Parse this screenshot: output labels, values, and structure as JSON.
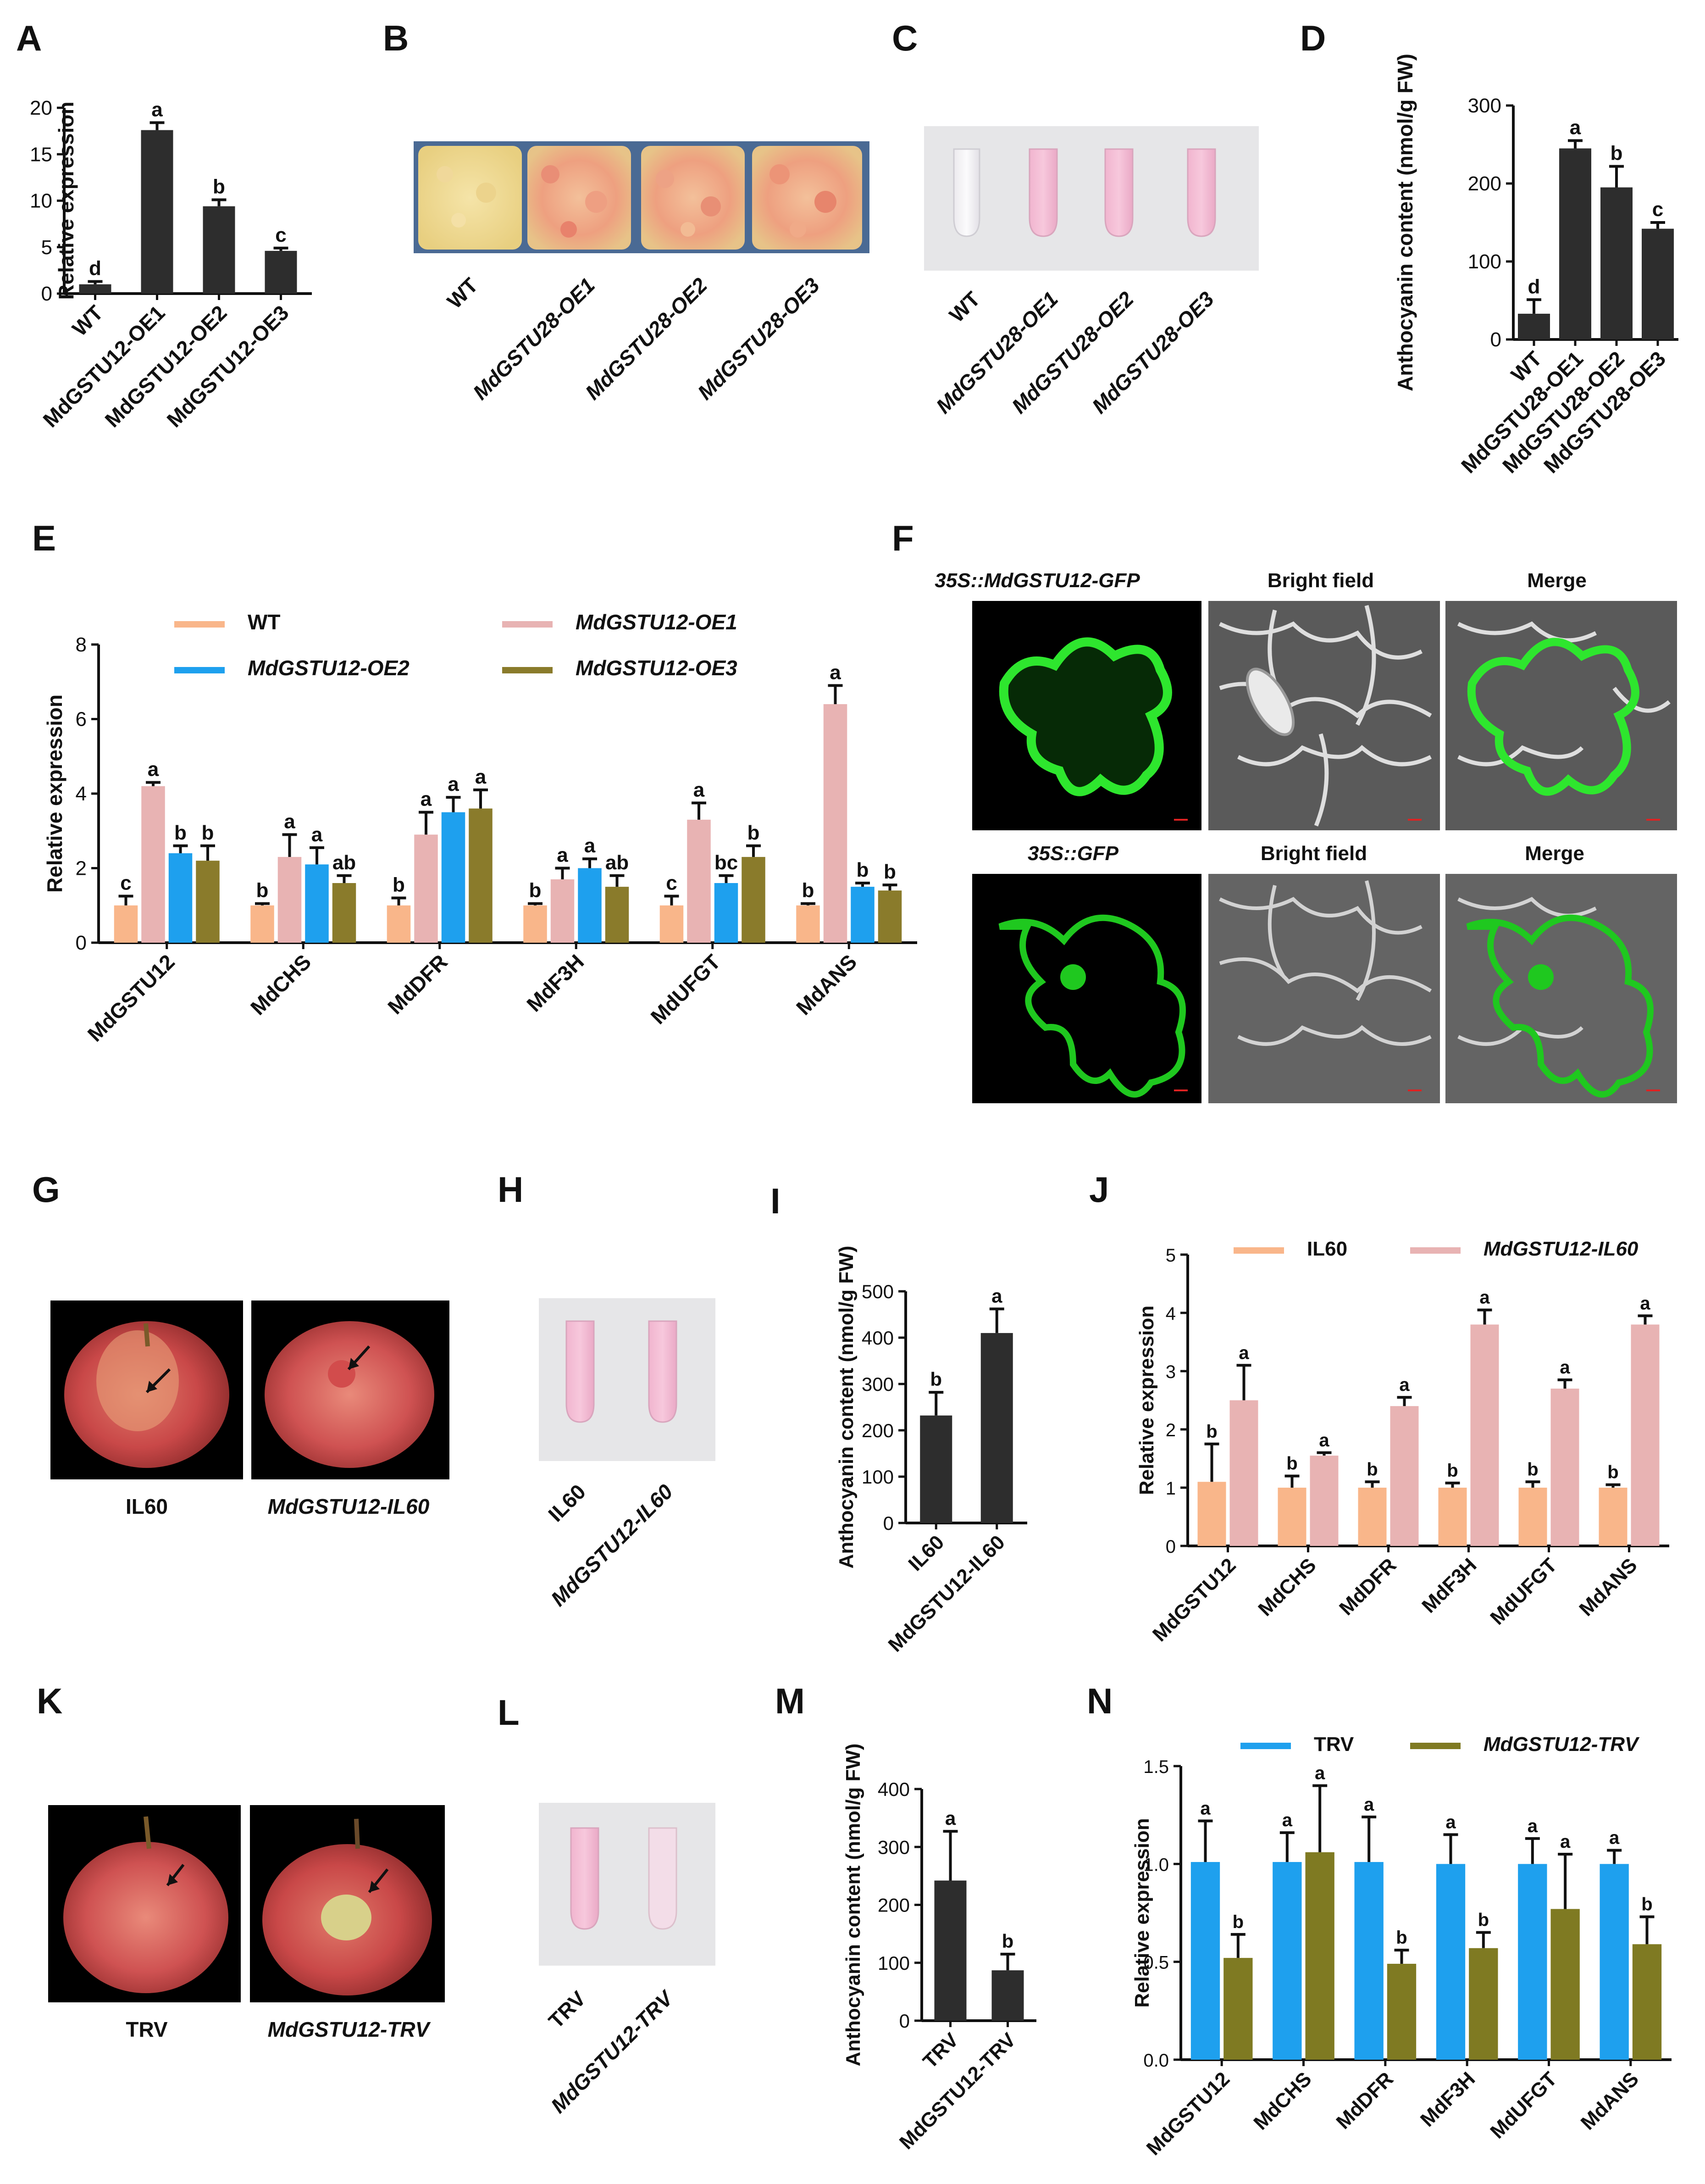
{
  "panel_labels": [
    "A",
    "B",
    "C",
    "D",
    "E",
    "F",
    "G",
    "H",
    "I",
    "J",
    "K",
    "L",
    "M",
    "N"
  ],
  "colors": {
    "dark_bar": "#2d2d2d",
    "wt_orange": "#f9b68a",
    "oe1_pink": "#e8b3b3",
    "oe2_blue": "#1ea0ee",
    "oe3_olive": "#8a7b2b",
    "trv_blue": "#1ea0ee",
    "trv_olive": "#7f7a22",
    "gfp_green": "#22dd22",
    "callus_bg": "#4a6a94"
  },
  "B": {
    "labels": [
      "WT",
      "MdGSTU28-OE1",
      "MdGSTU28-OE2",
      "MdGSTU28-OE3"
    ]
  },
  "C": {
    "labels": [
      "WT",
      "MdGSTU28-OE1",
      "MdGSTU28-OE2",
      "MdGSTU28-OE3"
    ]
  },
  "F": {
    "row1": [
      "35S::MdGSTU12-GFP",
      "Bright field",
      "Merge"
    ],
    "row2": [
      "35S::GFP",
      "Bright field",
      "Merge"
    ]
  },
  "G": {
    "labels": [
      "IL60",
      "MdGSTU12-IL60"
    ]
  },
  "H": {
    "labels": [
      "IL60",
      "MdGSTU12-IL60"
    ]
  },
  "K": {
    "labels": [
      "TRV",
      "MdGSTU12-TRV"
    ]
  },
  "L": {
    "labels": [
      "TRV",
      "MdGSTU12-TRV"
    ]
  },
  "chart_data": [
    {
      "panel": "A",
      "type": "bar",
      "categories": [
        "WT",
        "MdGSTU12-OE1",
        "MdGSTU12-OE2",
        "MdGSTU12-OE3"
      ],
      "values": [
        1.0,
        17.6,
        9.4,
        4.6
      ],
      "errors": [
        0.3,
        0.8,
        0.7,
        0.3
      ],
      "letters": [
        "d",
        "a",
        "b",
        "c"
      ],
      "ylabel": "Relative expression",
      "ylim": [
        0,
        20
      ],
      "yticks": [
        0,
        5,
        10,
        15,
        20
      ]
    },
    {
      "panel": "D",
      "type": "bar",
      "categories": [
        "WT",
        "MdGSTU28-OE1",
        "MdGSTU28-OE2",
        "MdGSTU28-OE3"
      ],
      "values": [
        33,
        245,
        195,
        142
      ],
      "errors": [
        18,
        10,
        27,
        8
      ],
      "letters": [
        "d",
        "a",
        "b",
        "c"
      ],
      "ylabel": "Anthocyanin content (nmol/g FW)",
      "ylim": [
        0,
        300
      ],
      "yticks": [
        0,
        100,
        200,
        300
      ]
    },
    {
      "panel": "E",
      "type": "bar",
      "categories": [
        "MdGSTU12",
        "MdCHS",
        "MdDFR",
        "MdF3H",
        "MdUFGT",
        "MdANS"
      ],
      "series": [
        {
          "name": "WT",
          "values": [
            1.0,
            1.0,
            1.0,
            1.0,
            1.0,
            1.0
          ],
          "errors": [
            0.25,
            0.05,
            0.2,
            0.05,
            0.25,
            0.05
          ],
          "letters": [
            "c",
            "b",
            "b",
            "b",
            "c",
            "b"
          ]
        },
        {
          "name": "MdGSTU12-OE1",
          "values": [
            4.2,
            2.3,
            2.9,
            1.7,
            3.3,
            6.4
          ],
          "errors": [
            0.1,
            0.6,
            0.6,
            0.3,
            0.45,
            0.5
          ],
          "letters": [
            "a",
            "a",
            "a",
            "a",
            "a",
            "a"
          ]
        },
        {
          "name": "MdGSTU12-OE2",
          "values": [
            2.4,
            2.1,
            3.5,
            2.0,
            1.6,
            1.5
          ],
          "errors": [
            0.2,
            0.45,
            0.4,
            0.25,
            0.2,
            0.1
          ],
          "letters": [
            "b",
            "a",
            "a",
            "a",
            "bc",
            "b"
          ]
        },
        {
          "name": "MdGSTU12-OE3",
          "values": [
            2.2,
            1.6,
            3.6,
            1.5,
            2.3,
            1.4
          ],
          "errors": [
            0.4,
            0.2,
            0.5,
            0.3,
            0.3,
            0.15
          ],
          "letters": [
            "b",
            "ab",
            "a",
            "ab",
            "b",
            "b"
          ]
        }
      ],
      "ylabel": "Relative expression",
      "ylim": [
        0,
        8
      ],
      "yticks": [
        0,
        2,
        4,
        6,
        8
      ]
    },
    {
      "panel": "I",
      "type": "bar",
      "categories": [
        "IL60",
        "MdGSTU12-IL60"
      ],
      "values": [
        232,
        410
      ],
      "errors": [
        50,
        52
      ],
      "letters": [
        "b",
        "a"
      ],
      "ylabel": "Anthocyanin content (nmol/g FW)",
      "ylim": [
        0,
        500
      ],
      "yticks": [
        0,
        100,
        200,
        300,
        400,
        500
      ]
    },
    {
      "panel": "J",
      "type": "bar",
      "categories": [
        "MdGSTU12",
        "MdCHS",
        "MdDFR",
        "MdF3H",
        "MdUFGT",
        "MdANS"
      ],
      "series": [
        {
          "name": "IL60",
          "values": [
            1.1,
            1.0,
            1.0,
            1.0,
            1.0,
            1.0
          ],
          "errors": [
            0.65,
            0.2,
            0.1,
            0.08,
            0.1,
            0.05
          ],
          "letters": [
            "b",
            "b",
            "b",
            "b",
            "b",
            "b"
          ]
        },
        {
          "name": "MdGSTU12-IL60",
          "values": [
            2.5,
            1.55,
            2.4,
            3.8,
            2.7,
            3.8
          ],
          "errors": [
            0.6,
            0.05,
            0.15,
            0.25,
            0.15,
            0.15
          ],
          "letters": [
            "a",
            "a",
            "a",
            "a",
            "a",
            "a"
          ]
        }
      ],
      "ylabel": "Relative expression",
      "ylim": [
        0,
        5
      ],
      "yticks": [
        0,
        1,
        2,
        3,
        4,
        5
      ]
    },
    {
      "panel": "M",
      "type": "bar",
      "categories": [
        "TRV",
        "MdGSTU12-TRV"
      ],
      "values": [
        242,
        87
      ],
      "errors": [
        85,
        28
      ],
      "letters": [
        "a",
        "b"
      ],
      "ylabel": "Anthocyanin content (nmol/g FW)",
      "ylim": [
        0,
        400
      ],
      "yticks": [
        0,
        100,
        200,
        300,
        400
      ]
    },
    {
      "panel": "N",
      "type": "bar",
      "categories": [
        "MdGSTU12",
        "MdCHS",
        "MdDFR",
        "MdF3H",
        "MdUFGT",
        "MdANS"
      ],
      "series": [
        {
          "name": "TRV",
          "values": [
            1.01,
            1.01,
            1.01,
            1.0,
            1.0,
            1.0
          ],
          "errors": [
            0.21,
            0.15,
            0.23,
            0.15,
            0.13,
            0.07
          ],
          "letters": [
            "a",
            "a",
            "a",
            "a",
            "a",
            "a"
          ]
        },
        {
          "name": "MdGSTU12-TRV",
          "values": [
            0.52,
            1.06,
            0.49,
            0.57,
            0.77,
            0.59
          ],
          "errors": [
            0.12,
            0.34,
            0.07,
            0.08,
            0.28,
            0.14
          ],
          "letters": [
            "b",
            "a",
            "b",
            "b",
            "a",
            "b"
          ]
        }
      ],
      "ylabel": "Relative expression",
      "ylim": [
        0,
        1.5
      ],
      "yticks": [
        "0.0",
        "0.5",
        "1.0",
        "1.5"
      ]
    }
  ]
}
